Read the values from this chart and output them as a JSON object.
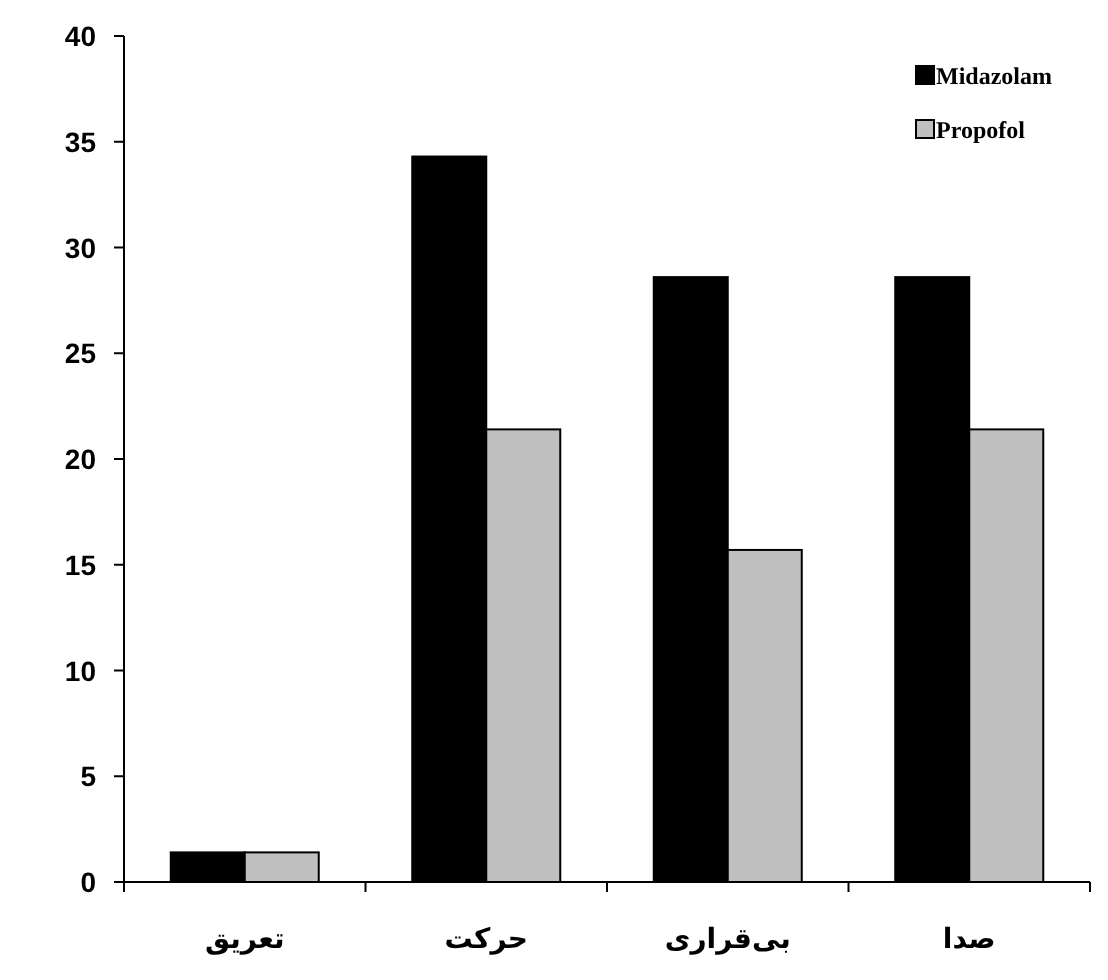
{
  "chart_data": {
    "type": "bar",
    "categories": [
      "تعریق",
      "حرکت",
      "بی‌قراری",
      "صدا"
    ],
    "series": [
      {
        "name": "Midazolam",
        "color": "#000000",
        "values": [
          1.4,
          34.3,
          28.6,
          28.6
        ]
      },
      {
        "name": "Propofol",
        "color": "#c0c0c0",
        "values": [
          1.4,
          21.4,
          15.7,
          21.4
        ]
      }
    ],
    "ylim": [
      0,
      40
    ],
    "yticks": [
      0,
      5,
      10,
      15,
      20,
      25,
      30,
      35,
      40
    ],
    "legend": "top right"
  }
}
